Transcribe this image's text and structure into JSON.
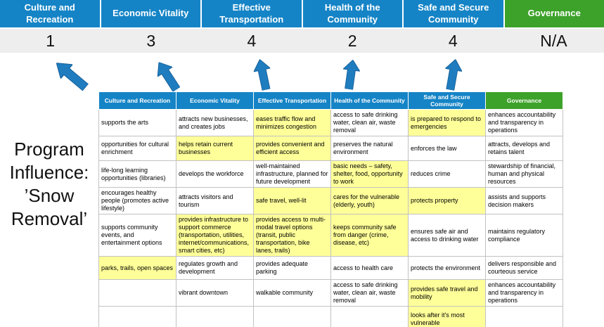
{
  "colors": {
    "header_blue": "#1584c6",
    "header_green": "#3da22a",
    "highlight_yellow": "#ffff99",
    "arrow_blue": "#1f7dbf",
    "score_band_gray": "#eeeeee"
  },
  "program_title": {
    "lines": [
      "Program",
      "Influence:",
      "’Snow",
      "Removal’"
    ]
  },
  "summary": {
    "columns": [
      {
        "label": "Culture and Recreation",
        "score": "1",
        "color": "#1584c6"
      },
      {
        "label": "Economic Vitality",
        "score": "3",
        "color": "#1584c6"
      },
      {
        "label": "Effective Transportation",
        "score": "4",
        "color": "#1584c6"
      },
      {
        "label": "Health of the Community",
        "score": "2",
        "color": "#1584c6"
      },
      {
        "label": "Safe and Secure Community",
        "score": "4",
        "color": "#1584c6"
      },
      {
        "label": "Governance",
        "score": "N/A",
        "color": "#3da22a"
      }
    ]
  },
  "matrix": {
    "headers": [
      {
        "label": "Culture and Recreation",
        "color": "#1584c6"
      },
      {
        "label": "Economic Vitality",
        "color": "#1584c6"
      },
      {
        "label": "Effective Transportation",
        "color": "#1584c6"
      },
      {
        "label": "Health of the Community",
        "color": "#1584c6"
      },
      {
        "label": "Safe and Secure Community",
        "color": "#1584c6"
      },
      {
        "label": "Governance",
        "color": "#3da22a"
      }
    ],
    "rows": [
      [
        {
          "text": "supports the arts",
          "highlight": false
        },
        {
          "text": "attracts new businesses, and creates jobs",
          "highlight": false
        },
        {
          "text": "eases traffic flow and minimizes congestion",
          "highlight": true
        },
        {
          "text": "access to safe drinking water, clean air, waste removal",
          "highlight": false
        },
        {
          "text": "is prepared to respond to emergencies",
          "highlight": true
        },
        {
          "text": "enhances accountability and transparency in operations",
          "highlight": false
        }
      ],
      [
        {
          "text": "opportunities for cultural enrichment",
          "highlight": false
        },
        {
          "text": "helps retain current businesses",
          "highlight": true
        },
        {
          "text": "provides convenient and efficient access",
          "highlight": true
        },
        {
          "text": "preserves the natural environment",
          "highlight": false
        },
        {
          "text": "enforces the law",
          "highlight": false
        },
        {
          "text": "attracts, develops and retains talent",
          "highlight": false
        }
      ],
      [
        {
          "text": "life-long learning opportunities (libraries)",
          "highlight": false
        },
        {
          "text": "develops the workforce",
          "highlight": false
        },
        {
          "text": "well-maintained infrastructure, planned for future development",
          "highlight": false
        },
        {
          "text": "basic needs – safety, shelter, food, opportunity to work",
          "highlight": true
        },
        {
          "text": "reduces crime",
          "highlight": false
        },
        {
          "text": "stewardship of financial, human and physical resources",
          "highlight": false
        }
      ],
      [
        {
          "text": "encourages healthy people (promotes active lifestyle)",
          "highlight": false
        },
        {
          "text": "attracts visitors and tourism",
          "highlight": false
        },
        {
          "text": "safe travel, well-lit",
          "highlight": true
        },
        {
          "text": "cares for the vulnerable (elderly, youth)",
          "highlight": true
        },
        {
          "text": "protects property",
          "highlight": true
        },
        {
          "text": "assists and supports decision makers",
          "highlight": false
        }
      ],
      [
        {
          "text": "supports community events, and entertainment options",
          "highlight": false
        },
        {
          "text": "provides infrastructure to support commerce (transportation, utilities, internet/communications, smart cities, etc)",
          "highlight": true
        },
        {
          "text": "provides access to multi-modal travel options (transit, public transportation, bike lanes, trails)",
          "highlight": true
        },
        {
          "text": "keeps community safe from danger (crime, disease, etc)",
          "highlight": true
        },
        {
          "text": "ensures safe air and access to drinking water",
          "highlight": false
        },
        {
          "text": "maintains regulatory compliance",
          "highlight": false
        }
      ],
      [
        {
          "text": "parks, trails, open spaces",
          "highlight": true
        },
        {
          "text": "regulates growth and development",
          "highlight": false
        },
        {
          "text": "provides adequate parking",
          "highlight": false
        },
        {
          "text": "access to health care",
          "highlight": false
        },
        {
          "text": "protects the environment",
          "highlight": false
        },
        {
          "text": "delivers responsible and courteous service",
          "highlight": false
        }
      ],
      [
        {
          "text": "",
          "highlight": false
        },
        {
          "text": "vibrant downtown",
          "highlight": false
        },
        {
          "text": "walkable community",
          "highlight": false
        },
        {
          "text": "access to safe drinking water, clean air, waste removal",
          "highlight": false
        },
        {
          "text": "provides safe travel and mobility",
          "highlight": true
        },
        {
          "text": "enhances accountability and transparency in operations",
          "highlight": false
        }
      ],
      [
        {
          "text": "",
          "highlight": false
        },
        {
          "text": "",
          "highlight": false
        },
        {
          "text": "",
          "highlight": false
        },
        {
          "text": "",
          "highlight": false
        },
        {
          "text": "looks after it's most vulnerable",
          "highlight": true
        },
        {
          "text": "",
          "highlight": false
        }
      ]
    ]
  }
}
